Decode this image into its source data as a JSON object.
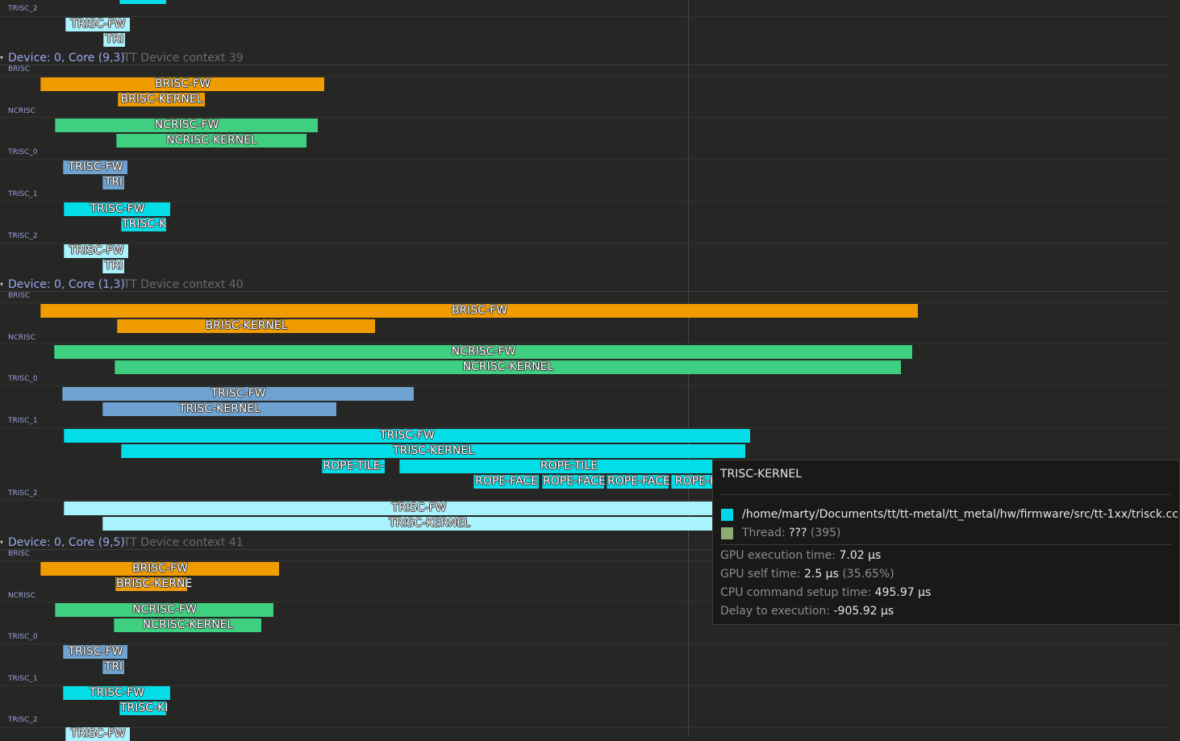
{
  "colors": {
    "background": "#262624",
    "brisc": "#f09c00",
    "ncrisc": "#3ecf80",
    "trisc0": "#6ea2d0",
    "trisc1": "#02dde7",
    "trisc2": "#a9f3ff",
    "thread_label": "#9aa0dc",
    "device_label": "#9aa8f0",
    "context_label": "#6b6b69"
  },
  "thread_labels": {
    "brisc": "BRISC",
    "ncrisc": "NCRISC",
    "trisc0": "TRISC_0",
    "trisc1": "TRISC_1",
    "trisc2": "TRISC_2"
  },
  "zone_names": {
    "brisc_fw": "BRISC-FW",
    "brisc_kernel": "BRISC-KERNEL",
    "brisc_kernel_trunc": "BRISC-KERNE",
    "ncrisc_fw": "NCRISC-FW",
    "ncrisc_kernel": "NCRISC-KERNEL",
    "trisc_fw": "TRISC-FW",
    "trisc_kernel": "TRISC-KERNEL",
    "tri_trunc": "TRI",
    "trisc_k_trunc": "TRISC-K",
    "trisc_ki_trunc": "TRISC-KI",
    "rope_tile": "ROPE-TILE",
    "rope_tile_trunc": "ROPE-TILE-",
    "rope_face": "ROPE-FACE",
    "rope_f_trunc": "ROPE-F"
  },
  "groups": [
    {
      "device": "Device: 0, Core (9,3)",
      "context": "TT Device context 39"
    },
    {
      "device": "Device: 0, Core (1,3)",
      "context": "TT Device context 40"
    },
    {
      "device": "Device: 0, Core (9,5)",
      "context": "TT Device context 41"
    }
  ],
  "tooltip": {
    "title": "TRISC-KERNEL",
    "source_color": "#00d6ea",
    "source": "/home/marty/Documents/tt/tt-metal/tt_metal/hw/firmware/src/tt-1xx/trisck.cc",
    "thread_color": "#8aab72",
    "thread_label": "Thread:",
    "thread_value": "???",
    "thread_id": "(395)",
    "gpu_exec_label": "GPU execution time:",
    "gpu_exec_value": "7.02 µs",
    "gpu_self_label": "GPU self time:",
    "gpu_self_value": "2.5 µs",
    "gpu_self_pct": "(35.65%)",
    "cpu_setup_label": "CPU command setup time:",
    "cpu_setup_value": "495.97 µs",
    "delay_label": "Delay to execution:",
    "delay_value": "-905.92 µs"
  }
}
